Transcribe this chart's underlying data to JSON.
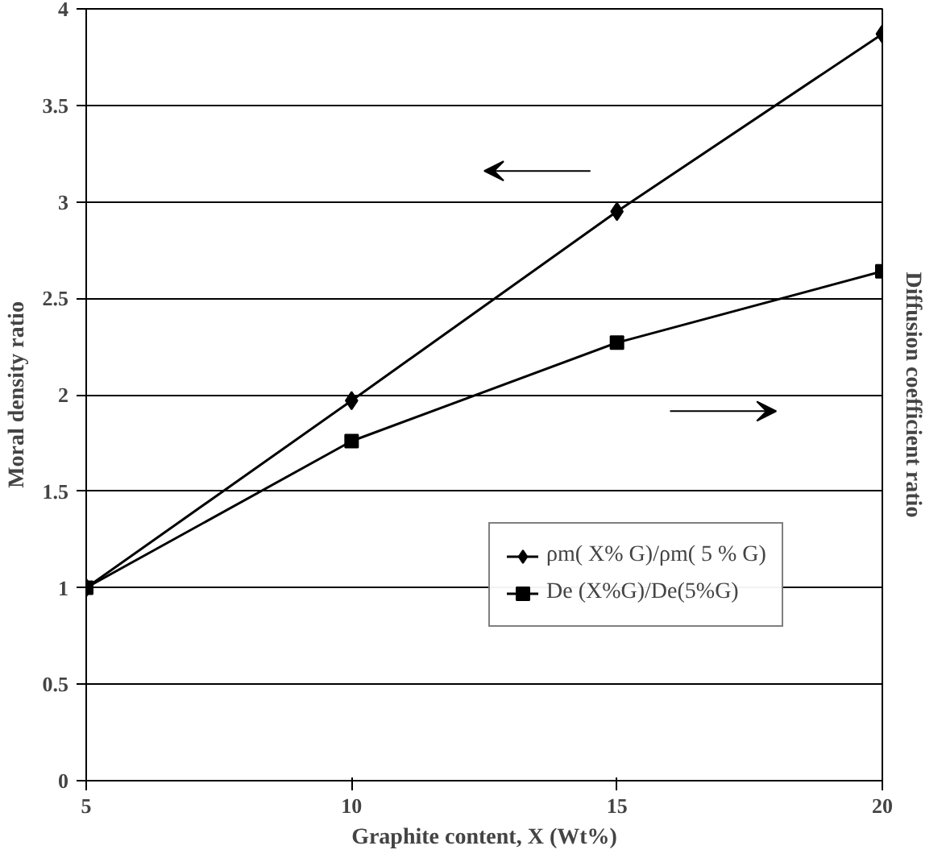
{
  "chart_data": {
    "type": "line",
    "xlabel": "Graphite content, X (Wt%)",
    "ylabel": "Moral density ratio",
    "y2label": "Diffusion coefficient ratio",
    "x": [
      5,
      10,
      15,
      20
    ],
    "series": [
      {
        "name": "ρm( X% G)/ρm( 5 % G)",
        "color": "#000000",
        "marker": "diamond",
        "values": [
          1,
          1.97,
          2.95,
          3.87
        ]
      },
      {
        "name": "De (X%G)/De(5%G)",
        "color": "#000000",
        "marker": "square",
        "values": [
          1,
          1.76,
          2.27,
          2.64
        ]
      }
    ],
    "xlim": [
      5,
      20
    ],
    "xticks": [
      5,
      10,
      15,
      20
    ],
    "ylim": [
      0,
      4
    ],
    "yticks": [
      0,
      0.5,
      1,
      1.5,
      2,
      2.5,
      3,
      3.5,
      4
    ],
    "grid": "y",
    "legend": "right",
    "line_style": "solid"
  }
}
